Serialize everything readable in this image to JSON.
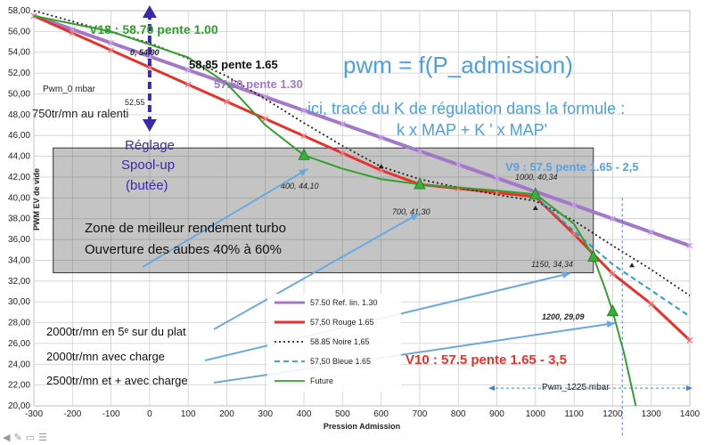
{
  "chart_data": {
    "type": "line",
    "title": "pwm = f(P_admission)",
    "subtitle_line1": "ici, tracé du K de régulation dans la formule :",
    "subtitle_line2": "k x MAP + K ' x MAP'",
    "xlabel": "Pression Admission",
    "ylabel": "PWM EV de vide",
    "xlim": [
      -300,
      1400
    ],
    "ylim": [
      20,
      58
    ],
    "x_ticks": [
      -300,
      -200,
      -100,
      0,
      100,
      200,
      300,
      400,
      500,
      600,
      700,
      800,
      900,
      1000,
      1100,
      1200,
      1300,
      1400
    ],
    "x_tick_labels": [
      "-300",
      "-200",
      "-100",
      "0",
      "100",
      "200",
      "300",
      "400",
      "500",
      "600",
      "700",
      "800",
      "900",
      "1000",
      "1100",
      "1200",
      "1300",
      "1400"
    ],
    "y_ticks": [
      20,
      22,
      24,
      26,
      28,
      30,
      32,
      34,
      36,
      38,
      40,
      42,
      44,
      46,
      48,
      50,
      52,
      54,
      56,
      58
    ],
    "y_tick_labels": [
      "20,00",
      "22,00",
      "24,00",
      "26,00",
      "28,00",
      "30,00",
      "32,00",
      "34,00",
      "36,00",
      "38,00",
      "40,00",
      "42,00",
      "44,00",
      "46,00",
      "48,00",
      "50,00",
      "52,00",
      "54,00",
      "56,00",
      "58,00"
    ],
    "grid": true,
    "legend_position": "bottom-center",
    "series": [
      {
        "name": "57.50 Ref. lin. 1.30",
        "color": "#a378c9",
        "style": "solid",
        "marker": "x",
        "x": [
          -300,
          -200,
          -100,
          0,
          100,
          200,
          300,
          400,
          500,
          600,
          700,
          800,
          900,
          1000,
          1100,
          1200,
          1300,
          1400
        ],
        "y": [
          57.5,
          56.2,
          54.9,
          53.6,
          52.3,
          51.0,
          49.7,
          48.4,
          47.1,
          45.8,
          44.5,
          43.2,
          41.9,
          40.6,
          39.3,
          38.0,
          36.7,
          35.4
        ]
      },
      {
        "name": "57,50 Rouge 1.65",
        "color": "#e8312a",
        "style": "solid",
        "marker": "x",
        "x": [
          -300,
          -200,
          -100,
          0,
          100,
          200,
          300,
          400,
          500,
          600,
          700,
          800,
          900,
          1000,
          1100,
          1200,
          1300,
          1400
        ],
        "y": [
          57.5,
          55.85,
          54.2,
          52.55,
          50.9,
          49.25,
          47.6,
          45.95,
          44.3,
          42.65,
          41.3,
          40.9,
          40.5,
          40.1,
          36.5,
          32.7,
          29.8,
          26.3
        ]
      },
      {
        "name": "58.85 Noire 1,65",
        "color": "#222222",
        "style": "dotted",
        "marker": "none",
        "x": [
          -300,
          0,
          100,
          200,
          300,
          400,
          500,
          600,
          700,
          800,
          900,
          1000,
          1100,
          1200,
          1300,
          1400
        ],
        "y": [
          58.0,
          54.9,
          53.4,
          51.7,
          49.5,
          47.2,
          45.0,
          43.0,
          41.8,
          41.0,
          40.3,
          39.7,
          37.8,
          35.4,
          33.1,
          30.6
        ]
      },
      {
        "name": "57,50 Bleue  1.65",
        "color": "#2a9fc4",
        "style": "dashed",
        "marker": "none",
        "x": [
          1000,
          1100,
          1200,
          1300,
          1400
        ],
        "y": [
          40.1,
          36.8,
          33.6,
          31.1,
          28.6
        ]
      },
      {
        "name": "Future",
        "color": "#33a02c",
        "style": "solid",
        "marker": "triangle",
        "x": [
          -300,
          -100,
          100,
          200,
          300,
          400,
          500,
          600,
          700,
          800,
          900,
          1000,
          1100,
          1150,
          1180,
          1200,
          1230,
          1260
        ],
        "y": [
          57.5,
          56.0,
          53.5,
          51.0,
          47.0,
          44.1,
          42.8,
          41.8,
          41.3,
          41.0,
          40.7,
          40.34,
          37.5,
          34.34,
          31.3,
          29.09,
          25.0,
          20.0
        ]
      }
    ],
    "markers": [
      {
        "x": 400,
        "y": 44.1,
        "label": "400, 44,10"
      },
      {
        "x": 700,
        "y": 41.3,
        "label": "700, 41,30"
      },
      {
        "x": 1000,
        "y": 40.34,
        "label": "1000, 40,34"
      },
      {
        "x": 1150,
        "y": 34.34,
        "label": "1150, 34,34"
      },
      {
        "x": 1200,
        "y": 29.09,
        "label": "1200, 29,09"
      }
    ],
    "annotations": {
      "v18": "V18 : 58.70 pente 1.00",
      "n5885": "58,85 pente 1.65",
      "n5750": "57.50 pente 1.30",
      "v9": "V9 : 57.5 pente 1.65 - 2,5",
      "v10": "V10 : 57.5 pente 1.65 - 3,5",
      "p0": "0, 54,90",
      "p5255": "52,55",
      "pwm0": "Pwm_0 mbar",
      "ralenti": "750tr/mn au ralenti",
      "reglage1": "Réglage",
      "reglage2": "Spool-up",
      "reglage3": "(butée)",
      "zone1": "Zone de meilleur rendement turbo",
      "zone2": "Ouverture des aubes 40% à 60%",
      "plat": "2000tr/mn en 5ᵉ sur du plat",
      "charge2000": "2000tr/mn avec charge",
      "charge2500": "2500tr/mn et +  avec charge",
      "pwm1225": "Pwm_1225 mbar"
    }
  }
}
